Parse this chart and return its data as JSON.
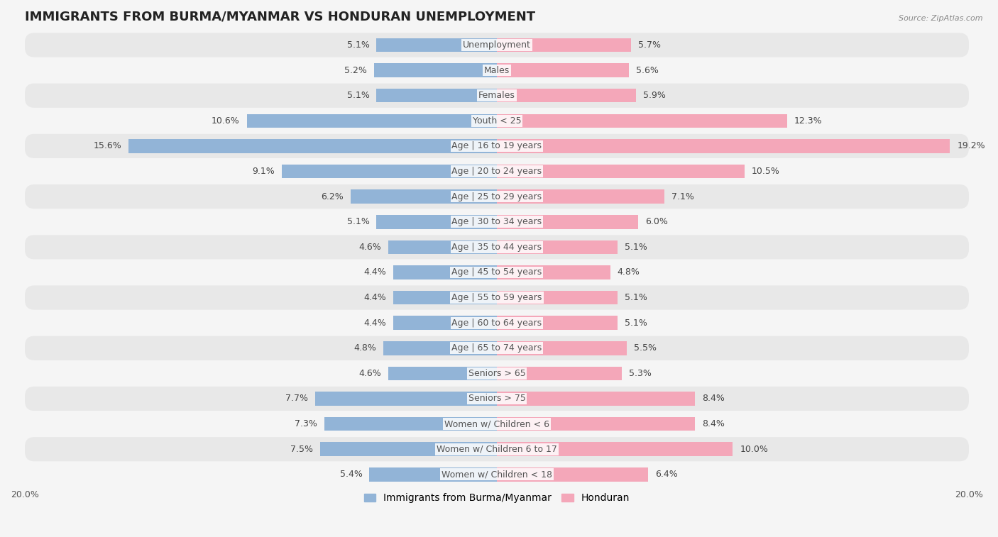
{
  "title": "IMMIGRANTS FROM BURMA/MYANMAR VS HONDURAN UNEMPLOYMENT",
  "source": "Source: ZipAtlas.com",
  "categories": [
    "Unemployment",
    "Males",
    "Females",
    "Youth < 25",
    "Age | 16 to 19 years",
    "Age | 20 to 24 years",
    "Age | 25 to 29 years",
    "Age | 30 to 34 years",
    "Age | 35 to 44 years",
    "Age | 45 to 54 years",
    "Age | 55 to 59 years",
    "Age | 60 to 64 years",
    "Age | 65 to 74 years",
    "Seniors > 65",
    "Seniors > 75",
    "Women w/ Children < 6",
    "Women w/ Children 6 to 17",
    "Women w/ Children < 18"
  ],
  "burma_values": [
    5.1,
    5.2,
    5.1,
    10.6,
    15.6,
    9.1,
    6.2,
    5.1,
    4.6,
    4.4,
    4.4,
    4.4,
    4.8,
    4.6,
    7.7,
    7.3,
    7.5,
    5.4
  ],
  "honduran_values": [
    5.7,
    5.6,
    5.9,
    12.3,
    19.2,
    10.5,
    7.1,
    6.0,
    5.1,
    4.8,
    5.1,
    5.1,
    5.5,
    5.3,
    8.4,
    8.4,
    10.0,
    6.4
  ],
  "burma_color": "#92b4d7",
  "honduran_color": "#f4a7b9",
  "xlim": 20.0,
  "background_color": "#f5f5f5",
  "row_colors": [
    "#e8e8e8",
    "#f5f5f5"
  ],
  "title_fontsize": 13,
  "label_fontsize": 9,
  "value_fontsize": 9,
  "tick_fontsize": 9,
  "legend_fontsize": 10
}
